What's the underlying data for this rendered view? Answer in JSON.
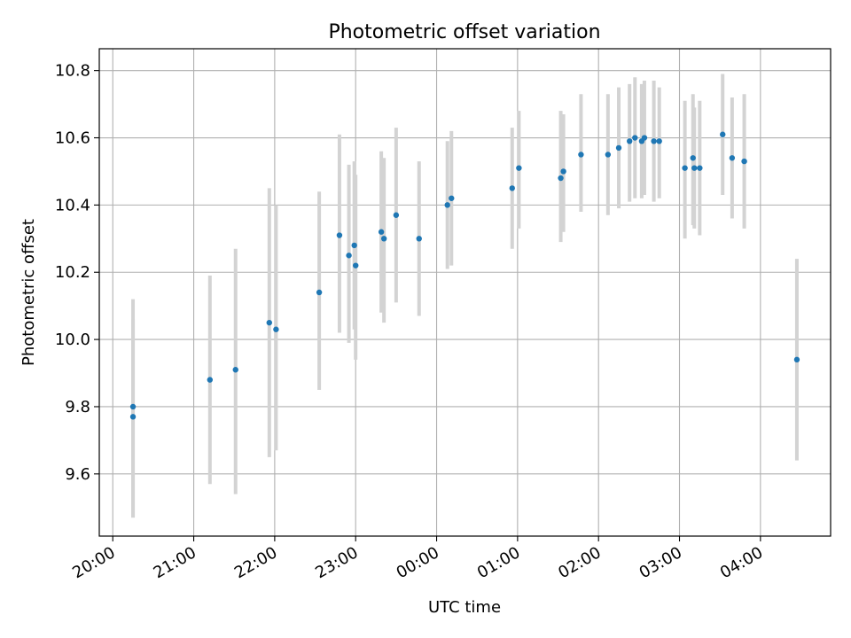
{
  "chart_data": {
    "type": "scatter",
    "title": "Photometric offset variation",
    "xlabel": "UTC time",
    "ylabel": "Photometric offset",
    "grid": true,
    "x_tick_labels": [
      "20:00",
      "21:00",
      "22:00",
      "23:00",
      "00:00",
      "01:00",
      "02:00",
      "03:00",
      "04:00"
    ],
    "y_tick_labels": [
      "9.6",
      "9.8",
      "10.0",
      "10.2",
      "10.4",
      "10.6",
      "10.8"
    ],
    "xlim": [
      "19:50",
      "04:52"
    ],
    "ylim": [
      9.415,
      10.865
    ],
    "point_color": "#1f77b4",
    "errorbar_color": "#d3d3d3",
    "points": [
      {
        "x": "20:15",
        "y": 9.8,
        "ylow": 9.47,
        "yhigh": 10.12
      },
      {
        "x": "20:15",
        "y": 9.77,
        "ylow": 9.47,
        "yhigh": 10.06
      },
      {
        "x": "21:12",
        "y": 9.88,
        "ylow": 9.57,
        "yhigh": 10.19
      },
      {
        "x": "21:31",
        "y": 9.91,
        "ylow": 9.54,
        "yhigh": 10.27
      },
      {
        "x": "21:56",
        "y": 10.05,
        "ylow": 9.65,
        "yhigh": 10.45
      },
      {
        "x": "22:01",
        "y": 10.03,
        "ylow": 9.67,
        "yhigh": 10.4
      },
      {
        "x": "22:33",
        "y": 10.14,
        "ylow": 9.85,
        "yhigh": 10.44
      },
      {
        "x": "22:48",
        "y": 10.31,
        "ylow": 10.02,
        "yhigh": 10.61
      },
      {
        "x": "22:55",
        "y": 10.25,
        "ylow": 9.99,
        "yhigh": 10.52
      },
      {
        "x": "22:59",
        "y": 10.28,
        "ylow": 10.03,
        "yhigh": 10.53
      },
      {
        "x": "23:00",
        "y": 10.22,
        "ylow": 9.94,
        "yhigh": 10.49
      },
      {
        "x": "23:19",
        "y": 10.32,
        "ylow": 10.08,
        "yhigh": 10.56
      },
      {
        "x": "23:21",
        "y": 10.3,
        "ylow": 10.05,
        "yhigh": 10.54
      },
      {
        "x": "23:30",
        "y": 10.37,
        "ylow": 10.11,
        "yhigh": 10.63
      },
      {
        "x": "23:47",
        "y": 10.3,
        "ylow": 10.07,
        "yhigh": 10.53
      },
      {
        "x": "00:08",
        "y": 10.4,
        "ylow": 10.21,
        "yhigh": 10.59
      },
      {
        "x": "00:11",
        "y": 10.42,
        "ylow": 10.22,
        "yhigh": 10.62
      },
      {
        "x": "00:56",
        "y": 10.45,
        "ylow": 10.27,
        "yhigh": 10.63
      },
      {
        "x": "01:01",
        "y": 10.51,
        "ylow": 10.33,
        "yhigh": 10.68
      },
      {
        "x": "01:32",
        "y": 10.48,
        "ylow": 10.29,
        "yhigh": 10.68
      },
      {
        "x": "01:34",
        "y": 10.5,
        "ylow": 10.32,
        "yhigh": 10.67
      },
      {
        "x": "01:47",
        "y": 10.55,
        "ylow": 10.38,
        "yhigh": 10.73
      },
      {
        "x": "02:07",
        "y": 10.55,
        "ylow": 10.37,
        "yhigh": 10.73
      },
      {
        "x": "02:15",
        "y": 10.57,
        "ylow": 10.39,
        "yhigh": 10.75
      },
      {
        "x": "02:23",
        "y": 10.59,
        "ylow": 10.41,
        "yhigh": 10.76
      },
      {
        "x": "02:27",
        "y": 10.6,
        "ylow": 10.42,
        "yhigh": 10.78
      },
      {
        "x": "02:32",
        "y": 10.59,
        "ylow": 10.42,
        "yhigh": 10.76
      },
      {
        "x": "02:34",
        "y": 10.6,
        "ylow": 10.43,
        "yhigh": 10.77
      },
      {
        "x": "02:41",
        "y": 10.59,
        "ylow": 10.41,
        "yhigh": 10.77
      },
      {
        "x": "02:45",
        "y": 10.59,
        "ylow": 10.42,
        "yhigh": 10.75
      },
      {
        "x": "03:04",
        "y": 10.51,
        "ylow": 10.3,
        "yhigh": 10.71
      },
      {
        "x": "03:10",
        "y": 10.54,
        "ylow": 10.34,
        "yhigh": 10.73
      },
      {
        "x": "03:11",
        "y": 10.51,
        "ylow": 10.33,
        "yhigh": 10.69
      },
      {
        "x": "03:15",
        "y": 10.51,
        "ylow": 10.31,
        "yhigh": 10.71
      },
      {
        "x": "03:32",
        "y": 10.61,
        "ylow": 10.43,
        "yhigh": 10.79
      },
      {
        "x": "03:39",
        "y": 10.54,
        "ylow": 10.36,
        "yhigh": 10.72
      },
      {
        "x": "03:48",
        "y": 10.53,
        "ylow": 10.33,
        "yhigh": 10.73
      },
      {
        "x": "04:27",
        "y": 9.94,
        "ylow": 9.64,
        "yhigh": 10.24
      }
    ]
  }
}
